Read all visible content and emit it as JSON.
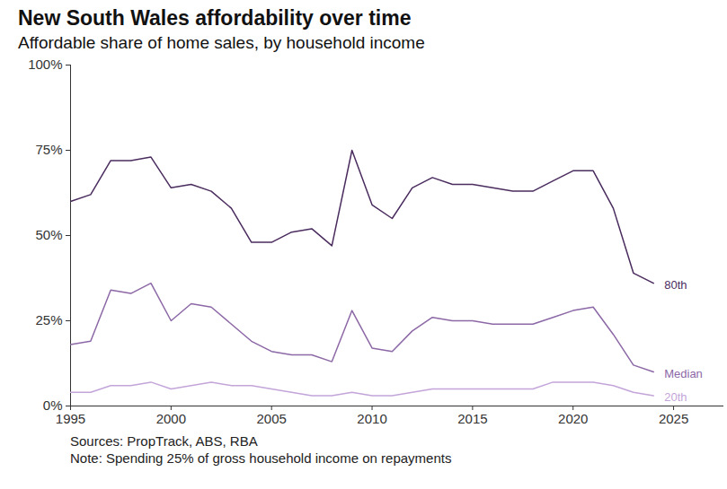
{
  "chart_data": {
    "type": "line",
    "title": "New South Wales affordability over time",
    "subtitle": "Affordable share of home sales, by household income",
    "notes": [
      "Sources: PropTrack, ABS, RBA",
      "Note: Spending 25% of gross household income on repayments"
    ],
    "x": [
      1995,
      1996,
      1997,
      1998,
      1999,
      2000,
      2001,
      2002,
      2003,
      2004,
      2005,
      2006,
      2007,
      2008,
      2009,
      2010,
      2011,
      2012,
      2013,
      2014,
      2015,
      2016,
      2017,
      2018,
      2019,
      2020,
      2021,
      2022,
      2023,
      2024
    ],
    "series": [
      {
        "name": "80th",
        "color": "#4a2c5e",
        "values": [
          60,
          62,
          72,
          72,
          73,
          64,
          65,
          63,
          58,
          48,
          48,
          51,
          52,
          47,
          75,
          59,
          55,
          64,
          67,
          65,
          65,
          64,
          63,
          63,
          66,
          69,
          69,
          58,
          39,
          36
        ]
      },
      {
        "name": "Median",
        "color": "#8c68a6",
        "values": [
          18,
          19,
          34,
          33,
          36,
          25,
          30,
          29,
          24,
          19,
          16,
          15,
          15,
          13,
          28,
          17,
          16,
          22,
          26,
          25,
          25,
          24,
          24,
          24,
          26,
          28,
          29,
          21,
          12,
          10
        ]
      },
      {
        "name": "20th",
        "color": "#c3a5d9",
        "values": [
          4,
          4,
          6,
          6,
          7,
          5,
          6,
          7,
          6,
          6,
          5,
          4,
          3,
          3,
          4,
          3,
          3,
          4,
          5,
          5,
          5,
          5,
          5,
          5,
          7,
          7,
          7,
          6,
          4,
          3
        ]
      }
    ],
    "xlim": [
      1995,
      2027.5
    ],
    "xticks": [
      1995,
      2000,
      2005,
      2010,
      2015,
      2020,
      2025
    ],
    "ylim": [
      0,
      100
    ],
    "yticks": [
      {
        "value": 0,
        "label": "0%"
      },
      {
        "value": 25,
        "label": "25%"
      },
      {
        "value": 50,
        "label": "50%"
      },
      {
        "value": 75,
        "label": "75%"
      },
      {
        "value": 100,
        "label": "100%"
      }
    ],
    "grid": false
  }
}
